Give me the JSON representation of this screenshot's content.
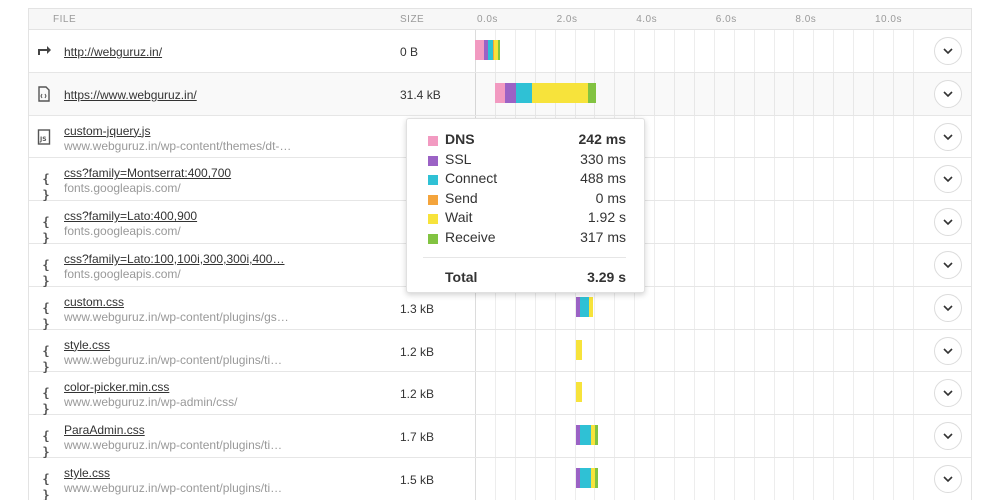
{
  "header": {
    "file": "FILE",
    "size": "SIZE"
  },
  "ticks": [
    "0.0s",
    "2.0s",
    "4.0s",
    "6.0s",
    "8.0s",
    "10.0s"
  ],
  "colors": {
    "dns": "#f29ac1",
    "ssl": "#9b62c5",
    "connect": "#2fc1d5",
    "send": "#f4a43c",
    "wait": "#f7e33b",
    "receive": "#82c341"
  },
  "rows": [
    {
      "icon": "redirect-icon",
      "name": "http://webguruz.in/",
      "path": "",
      "size": "0 B",
      "timing": [
        [
          "dns",
          0.0,
          0.22
        ],
        [
          "ssl",
          0.22,
          0.33
        ],
        [
          "connect",
          0.33,
          0.45
        ],
        [
          "send",
          0.45,
          0.47
        ],
        [
          "wait",
          0.47,
          0.57
        ],
        [
          "receive",
          0.57,
          0.62
        ]
      ]
    },
    {
      "icon": "html-file-icon",
      "name": "https://www.webguruz.in/",
      "path": "",
      "size": "31.4 kB",
      "timing": [
        [
          "dns",
          0.5,
          0.75
        ],
        [
          "ssl",
          0.75,
          1.02
        ],
        [
          "connect",
          1.02,
          1.42
        ],
        [
          "send",
          1.42,
          1.43
        ],
        [
          "wait",
          1.43,
          2.85
        ],
        [
          "receive",
          2.85,
          3.05
        ]
      ]
    },
    {
      "icon": "js-file-icon",
      "name": "custom-jquery.js",
      "path": "www.webguruz.in/wp-content/themes/dt-…",
      "size": "",
      "timing": []
    },
    {
      "icon": "css-file-icon",
      "name": "css?family=Montserrat:400,700",
      "path": "fonts.googleapis.com/",
      "size": "",
      "timing": []
    },
    {
      "icon": "css-file-icon",
      "name": "css?family=Lato:400,900",
      "path": "fonts.googleapis.com/",
      "size": "",
      "timing": []
    },
    {
      "icon": "css-file-icon",
      "name": "css?family=Lato:100,100i,300,300i,400…",
      "path": "fonts.googleapis.com/",
      "size": "",
      "timing": []
    },
    {
      "icon": "css-file-icon",
      "name": "custom.css",
      "path": "www.webguruz.in/wp-content/plugins/gs…",
      "size": "1.3 kB",
      "timing": [
        [
          "ssl",
          2.55,
          2.65
        ],
        [
          "connect",
          2.65,
          2.87
        ],
        [
          "wait",
          2.87,
          2.97
        ]
      ]
    },
    {
      "icon": "css-file-icon",
      "name": "style.css",
      "path": "www.webguruz.in/wp-content/plugins/ti…",
      "size": "1.2 kB",
      "timing": [
        [
          "wait",
          2.55,
          2.7
        ]
      ]
    },
    {
      "icon": "css-file-icon",
      "name": "color-picker.min.css",
      "path": "www.webguruz.in/wp-admin/css/",
      "size": "1.2 kB",
      "timing": [
        [
          "wait",
          2.55,
          2.7
        ]
      ]
    },
    {
      "icon": "css-file-icon",
      "name": "ParaAdmin.css",
      "path": "www.webguruz.in/wp-content/plugins/ti…",
      "size": "1.7 kB",
      "timing": [
        [
          "ssl",
          2.55,
          2.65
        ],
        [
          "connect",
          2.65,
          2.92
        ],
        [
          "wait",
          2.92,
          3.02
        ],
        [
          "receive",
          3.02,
          3.08
        ]
      ]
    },
    {
      "icon": "css-file-icon",
      "name": "style.css",
      "path": "www.webguruz.in/wp-content/plugins/ti…",
      "size": "1.5 kB",
      "timing": [
        [
          "ssl",
          2.55,
          2.65
        ],
        [
          "connect",
          2.65,
          2.92
        ],
        [
          "wait",
          2.92,
          3.02
        ],
        [
          "receive",
          3.02,
          3.08
        ]
      ]
    }
  ],
  "tooltip": {
    "items": [
      {
        "key": "dns",
        "label": "DNS",
        "value": "242 ms"
      },
      {
        "key": "ssl",
        "label": "SSL",
        "value": "330 ms"
      },
      {
        "key": "connect",
        "label": "Connect",
        "value": "488 ms"
      },
      {
        "key": "send",
        "label": "Send",
        "value": "0 ms"
      },
      {
        "key": "wait",
        "label": "Wait",
        "value": "1.92 s"
      },
      {
        "key": "receive",
        "label": "Receive",
        "value": "317 ms"
      }
    ],
    "total_label": "Total",
    "total_value": "3.29 s"
  }
}
